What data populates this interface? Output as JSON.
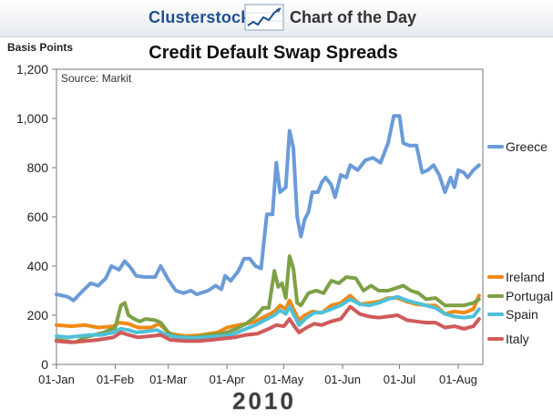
{
  "banner": {
    "brand": "Clusterstock",
    "tagline": "Chart of the Day"
  },
  "chart_data": {
    "type": "line",
    "title": "Credit Default Swap Spreads",
    "ylabel": "Basis Points",
    "xlabel": "2010",
    "source": "Source: Markit",
    "ylim": [
      0,
      1200
    ],
    "xlim": [
      0,
      225
    ],
    "y_ticks": [
      0,
      200,
      400,
      600,
      800,
      1000,
      1200
    ],
    "y_tick_labels": [
      "0",
      "200",
      "400",
      "600",
      "800",
      "1,000",
      "1,200"
    ],
    "x_ticks": [
      0,
      31,
      59,
      90,
      120,
      151,
      181,
      212
    ],
    "x_tick_labels": [
      "01-Jan",
      "01-Feb",
      "01-Mar",
      "01-Apr",
      "01-May",
      "01-Jun",
      "01-Jul",
      "01-Aug"
    ],
    "grid": false,
    "legend": "right, at line ends",
    "series": [
      {
        "name": "Greece",
        "color": "#6b9bd8",
        "points": [
          [
            0,
            285
          ],
          [
            6,
            275
          ],
          [
            9,
            260
          ],
          [
            14,
            300
          ],
          [
            18,
            330
          ],
          [
            22,
            320
          ],
          [
            26,
            350
          ],
          [
            29,
            400
          ],
          [
            33,
            385
          ],
          [
            36,
            420
          ],
          [
            39,
            395
          ],
          [
            42,
            360
          ],
          [
            47,
            355
          ],
          [
            52,
            355
          ],
          [
            55,
            400
          ],
          [
            59,
            345
          ],
          [
            63,
            300
          ],
          [
            67,
            290
          ],
          [
            71,
            300
          ],
          [
            74,
            285
          ],
          [
            80,
            300
          ],
          [
            84,
            320
          ],
          [
            87,
            305
          ],
          [
            89,
            360
          ],
          [
            92,
            340
          ],
          [
            96,
            380
          ],
          [
            99,
            430
          ],
          [
            102,
            430
          ],
          [
            105,
            400
          ],
          [
            108,
            390
          ],
          [
            111,
            610
          ],
          [
            114,
            610
          ],
          [
            116,
            820
          ],
          [
            118,
            700
          ],
          [
            121,
            720
          ],
          [
            123,
            950
          ],
          [
            125,
            880
          ],
          [
            127,
            600
          ],
          [
            129,
            520
          ],
          [
            131,
            590
          ],
          [
            133,
            620
          ],
          [
            135,
            700
          ],
          [
            138,
            700
          ],
          [
            140,
            740
          ],
          [
            142,
            760
          ],
          [
            145,
            730
          ],
          [
            147,
            680
          ],
          [
            150,
            770
          ],
          [
            153,
            760
          ],
          [
            155,
            810
          ],
          [
            159,
            790
          ],
          [
            163,
            830
          ],
          [
            167,
            840
          ],
          [
            171,
            820
          ],
          [
            175,
            900
          ],
          [
            178,
            1010
          ],
          [
            181,
            1010
          ],
          [
            183,
            900
          ],
          [
            186,
            890
          ],
          [
            190,
            890
          ],
          [
            193,
            780
          ],
          [
            196,
            790
          ],
          [
            199,
            810
          ],
          [
            202,
            770
          ],
          [
            205,
            700
          ],
          [
            208,
            760
          ],
          [
            210,
            720
          ],
          [
            212,
            790
          ],
          [
            215,
            780
          ],
          [
            217,
            760
          ],
          [
            220,
            790
          ],
          [
            223,
            810
          ]
        ]
      },
      {
        "name": "Ireland",
        "color": "#f08a16",
        "points": [
          [
            0,
            160
          ],
          [
            8,
            155
          ],
          [
            15,
            160
          ],
          [
            22,
            150
          ],
          [
            30,
            155
          ],
          [
            33,
            170
          ],
          [
            38,
            165
          ],
          [
            43,
            150
          ],
          [
            50,
            150
          ],
          [
            54,
            165
          ],
          [
            60,
            125
          ],
          [
            68,
            115
          ],
          [
            75,
            118
          ],
          [
            85,
            130
          ],
          [
            90,
            150
          ],
          [
            96,
            160
          ],
          [
            100,
            165
          ],
          [
            105,
            175
          ],
          [
            110,
            195
          ],
          [
            115,
            215
          ],
          [
            118,
            240
          ],
          [
            121,
            225
          ],
          [
            123,
            260
          ],
          [
            126,
            210
          ],
          [
            128,
            180
          ],
          [
            131,
            200
          ],
          [
            135,
            215
          ],
          [
            140,
            210
          ],
          [
            145,
            240
          ],
          [
            150,
            250
          ],
          [
            155,
            280
          ],
          [
            160,
            245
          ],
          [
            165,
            250
          ],
          [
            170,
            255
          ],
          [
            175,
            270
          ],
          [
            180,
            270
          ],
          [
            185,
            255
          ],
          [
            190,
            245
          ],
          [
            195,
            240
          ],
          [
            200,
            240
          ],
          [
            205,
            205
          ],
          [
            210,
            215
          ],
          [
            215,
            210
          ],
          [
            220,
            225
          ],
          [
            223,
            280
          ]
        ]
      },
      {
        "name": "Portugal",
        "color": "#7da046",
        "points": [
          [
            0,
            100
          ],
          [
            5,
            95
          ],
          [
            10,
            90
          ],
          [
            15,
            110
          ],
          [
            20,
            120
          ],
          [
            25,
            130
          ],
          [
            31,
            150
          ],
          [
            34,
            240
          ],
          [
            36,
            250
          ],
          [
            38,
            200
          ],
          [
            41,
            185
          ],
          [
            44,
            175
          ],
          [
            47,
            185
          ],
          [
            52,
            180
          ],
          [
            55,
            170
          ],
          [
            59,
            130
          ],
          [
            63,
            115
          ],
          [
            68,
            110
          ],
          [
            73,
            110
          ],
          [
            78,
            118
          ],
          [
            82,
            120
          ],
          [
            86,
            125
          ],
          [
            90,
            130
          ],
          [
            95,
            145
          ],
          [
            100,
            165
          ],
          [
            105,
            195
          ],
          [
            109,
            230
          ],
          [
            112,
            230
          ],
          [
            115,
            380
          ],
          [
            117,
            315
          ],
          [
            119,
            330
          ],
          [
            121,
            270
          ],
          [
            123,
            440
          ],
          [
            125,
            390
          ],
          [
            127,
            250
          ],
          [
            129,
            240
          ],
          [
            133,
            290
          ],
          [
            137,
            300
          ],
          [
            141,
            290
          ],
          [
            145,
            340
          ],
          [
            149,
            330
          ],
          [
            153,
            355
          ],
          [
            158,
            350
          ],
          [
            162,
            300
          ],
          [
            166,
            320
          ],
          [
            170,
            300
          ],
          [
            175,
            300
          ],
          [
            179,
            310
          ],
          [
            183,
            320
          ],
          [
            187,
            300
          ],
          [
            191,
            290
          ],
          [
            195,
            265
          ],
          [
            200,
            270
          ],
          [
            205,
            240
          ],
          [
            210,
            240
          ],
          [
            215,
            240
          ],
          [
            220,
            250
          ],
          [
            223,
            265
          ]
        ]
      },
      {
        "name": "Spain",
        "color": "#4fc0d8",
        "points": [
          [
            0,
            115
          ],
          [
            6,
            110
          ],
          [
            12,
            115
          ],
          [
            18,
            120
          ],
          [
            24,
            120
          ],
          [
            30,
            130
          ],
          [
            34,
            145
          ],
          [
            38,
            140
          ],
          [
            42,
            130
          ],
          [
            48,
            135
          ],
          [
            53,
            140
          ],
          [
            58,
            120
          ],
          [
            64,
            110
          ],
          [
            70,
            108
          ],
          [
            76,
            108
          ],
          [
            82,
            112
          ],
          [
            88,
            115
          ],
          [
            94,
            125
          ],
          [
            100,
            145
          ],
          [
            105,
            160
          ],
          [
            110,
            180
          ],
          [
            115,
            200
          ],
          [
            118,
            220
          ],
          [
            121,
            205
          ],
          [
            123,
            235
          ],
          [
            126,
            190
          ],
          [
            128,
            160
          ],
          [
            132,
            190
          ],
          [
            136,
            210
          ],
          [
            140,
            210
          ],
          [
            145,
            225
          ],
          [
            150,
            240
          ],
          [
            155,
            265
          ],
          [
            160,
            245
          ],
          [
            165,
            240
          ],
          [
            170,
            250
          ],
          [
            175,
            265
          ],
          [
            180,
            275
          ],
          [
            185,
            260
          ],
          [
            190,
            250
          ],
          [
            195,
            240
          ],
          [
            200,
            230
          ],
          [
            205,
            205
          ],
          [
            210,
            195
          ],
          [
            215,
            190
          ],
          [
            220,
            195
          ],
          [
            223,
            225
          ]
        ]
      },
      {
        "name": "Italy",
        "color": "#d05a5a",
        "points": [
          [
            0,
            95
          ],
          [
            8,
            90
          ],
          [
            15,
            95
          ],
          [
            22,
            100
          ],
          [
            30,
            110
          ],
          [
            34,
            130
          ],
          [
            38,
            120
          ],
          [
            43,
            110
          ],
          [
            50,
            115
          ],
          [
            55,
            120
          ],
          [
            60,
            100
          ],
          [
            68,
            95
          ],
          [
            75,
            95
          ],
          [
            82,
            100
          ],
          [
            88,
            105
          ],
          [
            94,
            110
          ],
          [
            100,
            120
          ],
          [
            106,
            125
          ],
          [
            112,
            145
          ],
          [
            116,
            160
          ],
          [
            120,
            155
          ],
          [
            123,
            185
          ],
          [
            126,
            150
          ],
          [
            128,
            130
          ],
          [
            132,
            150
          ],
          [
            136,
            165
          ],
          [
            140,
            160
          ],
          [
            145,
            175
          ],
          [
            150,
            185
          ],
          [
            155,
            235
          ],
          [
            160,
            205
          ],
          [
            165,
            195
          ],
          [
            170,
            190
          ],
          [
            175,
            195
          ],
          [
            180,
            200
          ],
          [
            185,
            180
          ],
          [
            190,
            175
          ],
          [
            195,
            170
          ],
          [
            200,
            170
          ],
          [
            205,
            150
          ],
          [
            210,
            155
          ],
          [
            215,
            145
          ],
          [
            220,
            155
          ],
          [
            223,
            185
          ]
        ]
      }
    ]
  }
}
